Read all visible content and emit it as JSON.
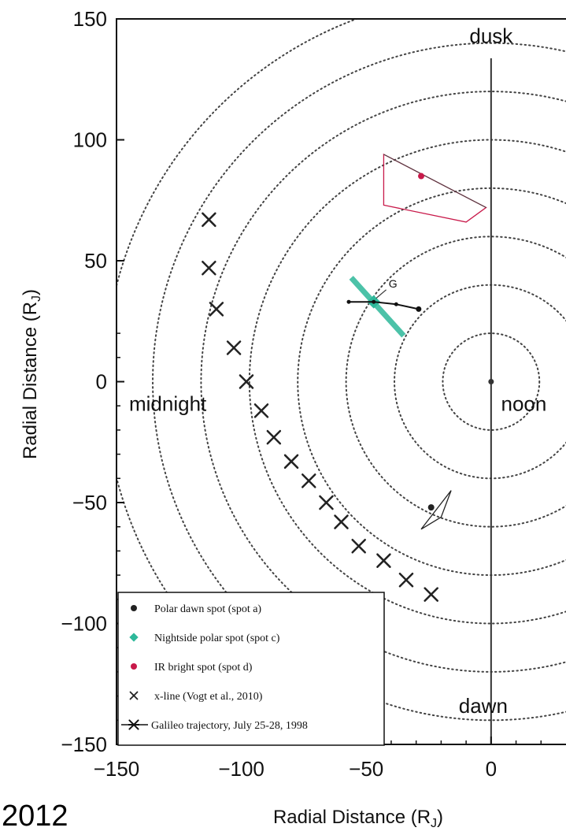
{
  "chart_data": {
    "type": "scatter",
    "xlabel": "Radial Distance (R",
    "xlabel_sub": "J",
    "xlabel_close": ")",
    "ylabel": "Radial Distance (R",
    "ylabel_sub": "J",
    "ylabel_close": ")",
    "xlim": [
      -150,
      30
    ],
    "ylim": [
      -150,
      150
    ],
    "xticks": [
      -150,
      -100,
      -50,
      0
    ],
    "xtick_labels": [
      "−150",
      "−100",
      "−50",
      "0"
    ],
    "yticks": [
      150,
      100,
      50,
      0,
      -50,
      -100,
      -150
    ],
    "ytick_labels": [
      "150",
      "100",
      "50",
      "0",
      "−50",
      "−100",
      "−150"
    ],
    "circle_radii": [
      20,
      40,
      60,
      80,
      100,
      120,
      140,
      160
    ],
    "region_labels": {
      "top": "dusk",
      "bottom": "dawn",
      "left": "midnight",
      "right": "noon"
    },
    "annotation_g": "G",
    "series": [
      {
        "name": "Polar dawn spot (spot a)",
        "color": "#222222",
        "marker": "dot",
        "points": [
          [
            -24,
            -52
          ]
        ],
        "region": [
          [
            -28,
            -61
          ],
          [
            -16,
            -45
          ],
          [
            -20,
            -56
          ]
        ]
      },
      {
        "name": "Nightside polar spot (spot c)",
        "color": "#2db89a",
        "marker": "dot",
        "points": [
          [
            -47,
            33
          ]
        ],
        "segment": [
          [
            -56,
            43
          ],
          [
            -35,
            19
          ]
        ]
      },
      {
        "name": "IR bright spot (spot d)",
        "color": "#c8194a",
        "marker": "dot",
        "points": [
          [
            -28,
            85
          ]
        ],
        "region": [
          [
            -43,
            94
          ],
          [
            -2,
            72
          ],
          [
            -10,
            66
          ],
          [
            -43,
            73
          ]
        ]
      },
      {
        "name": "x-line (Vogt et al., 2010)",
        "color": "#222222",
        "marker": "x",
        "points": [
          [
            -113,
            67
          ],
          [
            -113,
            47
          ],
          [
            -110,
            30
          ],
          [
            -103,
            14
          ],
          [
            -98,
            0
          ],
          [
            -92,
            -12
          ],
          [
            -87,
            -23
          ],
          [
            -80,
            -33
          ],
          [
            -73,
            -41
          ],
          [
            -66,
            -50
          ],
          [
            -60,
            -58
          ],
          [
            -53,
            -68
          ],
          [
            -43,
            -74
          ],
          [
            -34,
            -82
          ],
          [
            -24,
            -88
          ]
        ]
      },
      {
        "name": "Galileo trajectory,  July 25-28, 1998",
        "color": "#111111",
        "marker": "star-line",
        "points": [
          [
            -57,
            33
          ],
          [
            -47,
            33
          ],
          [
            -38,
            32
          ],
          [
            -29,
            30
          ]
        ]
      }
    ],
    "jupiter_marker": [
      0,
      0
    ],
    "legend_position": "bottom-left",
    "grid": false
  },
  "footer": {
    "year": "2012"
  }
}
